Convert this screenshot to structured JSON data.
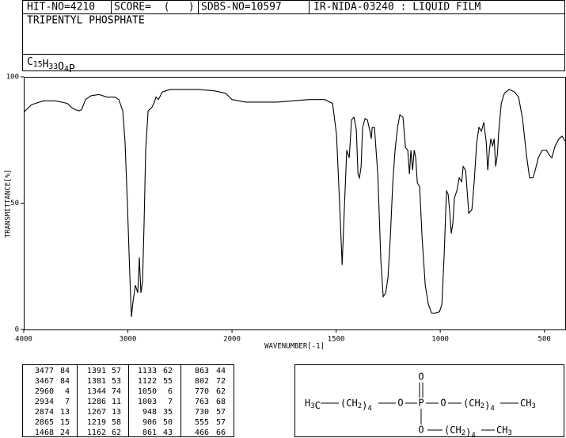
{
  "chart_data": {
    "type": "line",
    "header": {
      "hit": "HIT-NO=4210",
      "score": "SCORE=  (   )",
      "sdbs": "SDBS-NO=10597",
      "method": "IR-NIDA-03240 : LIQUID FILM"
    },
    "title": "TRIPENTYL PHOSPHATE",
    "formula": "C15H33O4P",
    "xlabel": "WAVENUMBER[-1]",
    "ylabel": "TRANSMITTANCE[%]",
    "xlim": [
      4000,
      400
    ],
    "x_scale_change": 2000,
    "ylim": [
      0,
      100
    ],
    "xticks": [
      4000,
      3000,
      2000,
      1500,
      1000,
      500
    ],
    "yticks": [
      0,
      50,
      100
    ],
    "series": [
      {
        "color": "#000000",
        "x": [
          4000,
          3924,
          3810,
          3696,
          3582,
          3544,
          3506,
          3468,
          3445,
          3407,
          3354,
          3278,
          3202,
          3125,
          3087,
          3049,
          3027,
          3004,
          2981,
          2966,
          2951,
          2928,
          2905,
          2890,
          2875,
          2859,
          2844,
          2829,
          2806,
          2768,
          2745,
          2730,
          2707,
          2669,
          2593,
          2479,
          2327,
          2175,
          2061,
          2000,
          1935,
          1859,
          1783,
          1707,
          1631,
          1555,
          1517,
          1498,
          1483,
          1471,
          1460,
          1449,
          1437,
          1426,
          1414,
          1403,
          1395,
          1388,
          1380,
          1373,
          1361,
          1350,
          1339,
          1331,
          1327,
          1316,
          1300,
          1285,
          1274,
          1262,
          1251,
          1240,
          1228,
          1217,
          1205,
          1194,
          1179,
          1167,
          1156,
          1148,
          1141,
          1133,
          1125,
          1118,
          1110,
          1099,
          1087,
          1072,
          1057,
          1042,
          1023,
          1004,
          992,
          981,
          970,
          962,
          954,
          947,
          939,
          932,
          920,
          909,
          897,
          890,
          878,
          871,
          863,
          848,
          837,
          825,
          814,
          802,
          791,
          779,
          772,
          764,
          757,
          749,
          741,
          734,
          726,
          719,
          707,
          692,
          669,
          643,
          624,
          605,
          586,
          571,
          555,
          544,
          529,
          510,
          491,
          476,
          464,
          449,
          430,
          415,
          400
        ],
        "values": [
          86,
          89,
          90.5,
          90.5,
          89.5,
          88,
          87,
          86.5,
          87,
          91,
          92.5,
          93,
          92,
          92,
          91,
          86.5,
          74,
          49,
          21,
          5,
          11,
          17.5,
          14.5,
          28.5,
          14.5,
          19,
          42.5,
          71,
          86.5,
          88,
          90,
          92,
          91,
          94,
          95,
          95,
          95,
          94.5,
          93.5,
          91,
          90,
          90,
          90,
          90.5,
          91,
          91,
          89.5,
          77,
          49,
          25.5,
          49,
          71,
          68,
          83,
          84,
          79,
          61.5,
          60,
          64.5,
          80,
          83.5,
          83,
          79,
          75.5,
          80,
          80,
          61.5,
          27,
          13,
          14.5,
          20.5,
          36,
          58,
          71,
          80,
          85,
          84,
          72,
          71,
          61.5,
          71,
          63,
          71,
          68,
          58,
          56.5,
          36,
          17.5,
          10,
          6.5,
          6.5,
          7,
          10,
          30,
          55,
          53.5,
          46,
          38,
          42.5,
          52,
          55,
          60,
          58.5,
          64.5,
          63,
          55,
          46,
          47.5,
          58.5,
          74,
          80,
          78.5,
          82,
          74,
          63,
          71,
          75.5,
          72.5,
          75.5,
          64.5,
          69,
          78.5,
          89.5,
          93.5,
          95,
          94,
          92,
          83.5,
          69,
          60,
          60,
          63,
          68,
          71,
          71,
          69,
          68,
          72.5,
          75.5,
          76.5,
          74.5
        ]
      }
    ],
    "peak_table": [
      [
        [
          3477,
          84
        ],
        [
          3467,
          84
        ],
        [
          2960,
          4
        ],
        [
          2934,
          7
        ],
        [
          2874,
          13
        ],
        [
          2865,
          15
        ],
        [
          1468,
          24
        ]
      ],
      [
        [
          1391,
          57
        ],
        [
          1381,
          53
        ],
        [
          1344,
          74
        ],
        [
          1286,
          11
        ],
        [
          1267,
          13
        ],
        [
          1219,
          58
        ],
        [
          1162,
          62
        ]
      ],
      [
        [
          1133,
          62
        ],
        [
          1122,
          55
        ],
        [
          1050,
          6
        ],
        [
          1003,
          7
        ],
        [
          948,
          35
        ],
        [
          906,
          50
        ],
        [
          861,
          43
        ]
      ],
      [
        [
          863,
          44
        ],
        [
          802,
          72
        ],
        [
          770,
          62
        ],
        [
          763,
          68
        ],
        [
          730,
          57
        ],
        [
          555,
          57
        ],
        [
          466,
          66
        ]
      ]
    ],
    "structure": [
      "H3C",
      "(CH2)4",
      "O",
      "P",
      "O",
      "(CH2)4",
      "CH3",
      "O",
      "O",
      "(CH2)4",
      "CH3"
    ]
  }
}
